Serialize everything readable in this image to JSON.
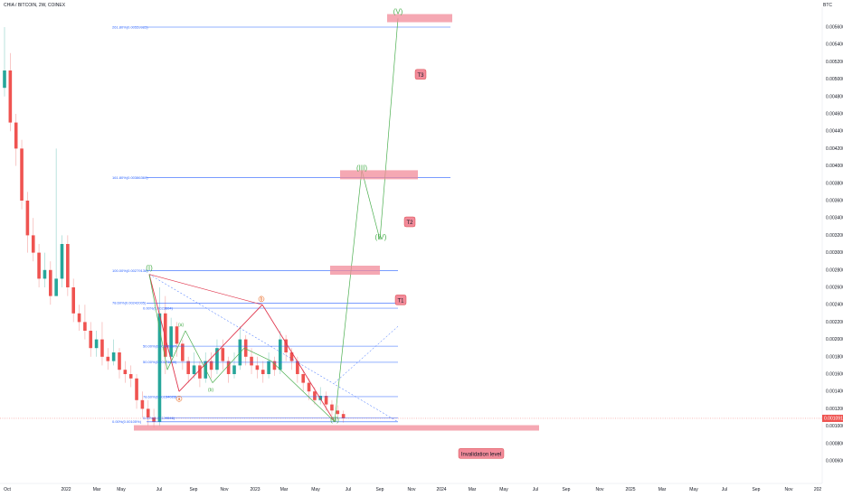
{
  "header": {
    "title": "CHIA / BITCOIN, 2W, COINEX",
    "currency": "BTC"
  },
  "colors": {
    "up": "#26a69a",
    "down": "#ef5350",
    "fib": "#2962ff",
    "wave": "#4caf50",
    "pattern": "#e0334a",
    "target": "#f28b9a"
  },
  "chart_data": {
    "type": "candlestick",
    "y_ticks": [
      0.0056,
      0.0054,
      0.0052,
      0.005,
      0.0048,
      0.0046,
      0.0044,
      0.0042,
      0.004,
      0.0038,
      0.0036,
      0.0034,
      0.0032,
      0.003,
      0.0028,
      0.0026,
      0.0024,
      0.0022,
      0.002,
      0.0018,
      0.0016,
      0.0014,
      0.0012,
      0.001,
      0.0008,
      0.0006
    ],
    "y_tick_labels": [
      "0.00560000",
      "0.00540000",
      "0.00520000",
      "0.00500000",
      "0.00480000",
      "0.00460000",
      "0.00440000",
      "0.00420000",
      "0.00400000",
      "0.00380000",
      "0.00360000",
      "0.00340000",
      "0.00320000",
      "0.00300000",
      "0.00280000",
      "0.00260000",
      "0.00240000",
      "0.00220000",
      "0.00200000",
      "0.00180000",
      "0.00160000",
      "0.00140000",
      "0.00120000",
      "0.00100000",
      "0.00080000",
      "0.00060000"
    ],
    "x_labels": [
      "Oct",
      "2022",
      "Mar",
      "May",
      "Jul",
      "Sep",
      "Nov",
      "2023",
      "Mar",
      "May",
      "Jul",
      "Sep",
      "Nov",
      "2024",
      "Mar",
      "May",
      "Jul",
      "Sep",
      "Nov",
      "2025",
      "Mar",
      "May",
      "Jul",
      "Sep",
      "Nov",
      "202"
    ],
    "last_price": 0.00109,
    "last_price_label": "0.00109100",
    "candles": [
      [
        0.0049,
        0.0051,
        0.0056,
        0.0048
      ],
      [
        0.0051,
        0.0045,
        0.0053,
        0.0044
      ],
      [
        0.0045,
        0.0042,
        0.0046,
        0.004
      ],
      [
        0.0042,
        0.0036,
        0.0043,
        0.0035
      ],
      [
        0.0036,
        0.0032,
        0.0037,
        0.003
      ],
      [
        0.0032,
        0.003,
        0.0034,
        0.0029
      ],
      [
        0.003,
        0.0027,
        0.0031,
        0.0026
      ],
      [
        0.0027,
        0.0028,
        0.003,
        0.0026
      ],
      [
        0.0028,
        0.0025,
        0.0029,
        0.0024
      ],
      [
        0.0025,
        0.0027,
        0.0042,
        0.0025
      ],
      [
        0.0027,
        0.0031,
        0.0032,
        0.0026
      ],
      [
        0.0031,
        0.0026,
        0.0032,
        0.0025
      ],
      [
        0.0026,
        0.0023,
        0.0027,
        0.0022
      ],
      [
        0.0023,
        0.0022,
        0.0024,
        0.0021
      ],
      [
        0.0022,
        0.0021,
        0.0024,
        0.002
      ],
      [
        0.0021,
        0.0019,
        0.0022,
        0.0018
      ],
      [
        0.0019,
        0.002,
        0.0021,
        0.0018
      ],
      [
        0.002,
        0.0018,
        0.0022,
        0.0017
      ],
      [
        0.0018,
        0.00175,
        0.0019,
        0.00165
      ],
      [
        0.00175,
        0.00185,
        0.002,
        0.0017
      ],
      [
        0.00185,
        0.00165,
        0.0019,
        0.00155
      ],
      [
        0.00165,
        0.0016,
        0.00175,
        0.0015
      ],
      [
        0.0016,
        0.00155,
        0.0017,
        0.00145
      ],
      [
        0.00155,
        0.0013,
        0.0016,
        0.0012
      ],
      [
        0.0013,
        0.0012,
        0.0014,
        0.0011
      ],
      [
        0.0012,
        0.0011,
        0.0013,
        0.001
      ],
      [
        0.0011,
        0.00105,
        0.0012,
        0.00098
      ],
      [
        0.00105,
        0.0023,
        0.0026,
        0.001
      ],
      [
        0.0023,
        0.0018,
        0.0025,
        0.0016
      ],
      [
        0.0018,
        0.00215,
        0.00225,
        0.00175
      ],
      [
        0.00215,
        0.00195,
        0.0022,
        0.0018
      ],
      [
        0.00195,
        0.00175,
        0.002,
        0.00165
      ],
      [
        0.00175,
        0.0016,
        0.0018,
        0.0015
      ],
      [
        0.0016,
        0.0017,
        0.00185,
        0.00155
      ],
      [
        0.0017,
        0.00155,
        0.00175,
        0.00145
      ],
      [
        0.00155,
        0.00175,
        0.00185,
        0.0015
      ],
      [
        0.00175,
        0.00165,
        0.00185,
        0.00155
      ],
      [
        0.00165,
        0.0019,
        0.002,
        0.0016
      ],
      [
        0.0019,
        0.00175,
        0.002,
        0.00165
      ],
      [
        0.00175,
        0.0016,
        0.0018,
        0.0015
      ],
      [
        0.0016,
        0.0017,
        0.00185,
        0.00155
      ],
      [
        0.0017,
        0.002,
        0.00215,
        0.00165
      ],
      [
        0.002,
        0.0018,
        0.00205,
        0.0017
      ],
      [
        0.0018,
        0.0017,
        0.0019,
        0.0016
      ],
      [
        0.0017,
        0.00165,
        0.0018,
        0.00155
      ],
      [
        0.00165,
        0.0016,
        0.00175,
        0.0015
      ],
      [
        0.0016,
        0.00175,
        0.00185,
        0.00155
      ],
      [
        0.00175,
        0.00165,
        0.0018,
        0.00158
      ],
      [
        0.00165,
        0.002,
        0.0021,
        0.0016
      ],
      [
        0.002,
        0.00185,
        0.00205,
        0.00175
      ],
      [
        0.00185,
        0.00175,
        0.0019,
        0.00165
      ],
      [
        0.00175,
        0.0016,
        0.0018,
        0.0015
      ],
      [
        0.0016,
        0.0015,
        0.00165,
        0.0014
      ],
      [
        0.0015,
        0.0014,
        0.00155,
        0.0013
      ],
      [
        0.0014,
        0.0013,
        0.00145,
        0.00125
      ],
      [
        0.0013,
        0.00135,
        0.00145,
        0.00125
      ],
      [
        0.00135,
        0.00125,
        0.0014,
        0.00118
      ],
      [
        0.00125,
        0.00118,
        0.0013,
        0.00112
      ],
      [
        0.00118,
        0.00114,
        0.00124,
        0.00108
      ],
      [
        0.00114,
        0.00109,
        0.00118,
        0.00104
      ]
    ],
    "fib_levels": [
      {
        "label": "261.80%(0.00559985)",
        "value": 0.0056
      },
      {
        "label": "161.80%(0.00386369)",
        "value": 0.003864
      },
      {
        "label": "100.00%(0.00279136)",
        "value": 0.002791
      },
      {
        "label": "78.60%(0.00242005)",
        "value": 0.00242
      },
      {
        "label": "0.00%(0.00105%)",
        "value": 0.00105
      }
    ],
    "inner_fib_levels": [
      {
        "label": "0.00%(0.0023604)",
        "value": 0.00236
      },
      {
        "label": "50.00%(0.00192237)",
        "value": 0.001922
      },
      {
        "label": "50.00%(0.00173649)",
        "value": 0.001736
      },
      {
        "label": "78.60%(0.00134023)",
        "value": 0.00134
      },
      {
        "label": "0.00%(0.00109546)",
        "value": 0.001095
      }
    ],
    "wave_labels": [
      {
        "text": "(I)",
        "value": 0.0028
      },
      {
        "text": "(II)",
        "value": 0.00105
      },
      {
        "text": "(III)",
        "value": 0.00395
      },
      {
        "text": "(IV)",
        "value": 0.00315
      },
      {
        "text": "(V)",
        "value": 0.00575
      }
    ],
    "sub_wave_labels": [
      {
        "text": "(a)",
        "value": 0.00215
      },
      {
        "text": "(b)",
        "value": 0.0014
      }
    ],
    "orange_labels": [
      {
        "text": "a",
        "value": 0.0013
      },
      {
        "text": "b",
        "value": 0.00245
      }
    ],
    "targets": [
      {
        "text": "T1",
        "value": 0.00245
      },
      {
        "text": "T2",
        "value": 0.00335
      },
      {
        "text": "T3",
        "value": 0.00505
      }
    ],
    "invalidation": {
      "text": "Invalidation level",
      "value": 0.00098
    }
  }
}
